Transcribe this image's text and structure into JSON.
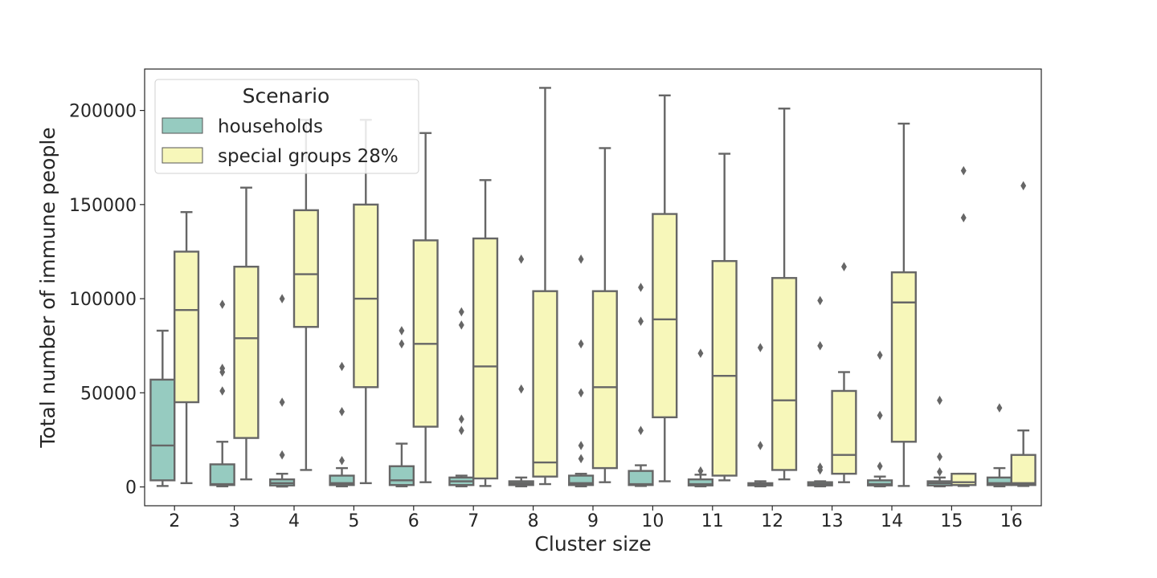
{
  "chart_data": {
    "type": "box",
    "xlabel": "Cluster size",
    "ylabel": "Total number of immune people",
    "ylim": [
      -10000,
      222000
    ],
    "yticks": [
      0,
      50000,
      100000,
      150000,
      200000
    ],
    "categories": [
      "2",
      "3",
      "4",
      "5",
      "6",
      "7",
      "8",
      "9",
      "10",
      "11",
      "12",
      "13",
      "14",
      "15",
      "16"
    ],
    "legend": {
      "title": "Scenario",
      "placement": "top-left"
    },
    "series": [
      {
        "name": "households",
        "color": "#96cbc0",
        "boxes": [
          {
            "whislo": 500,
            "q1": 3500,
            "med": 22000,
            "q3": 57000,
            "whishi": 83000,
            "fliers": []
          },
          {
            "whislo": 300,
            "q1": 1000,
            "med": 1500,
            "q3": 12000,
            "whishi": 24000,
            "fliers": [
              51000,
              61000,
              63000,
              97000
            ]
          },
          {
            "whislo": 200,
            "q1": 800,
            "med": 2000,
            "q3": 4000,
            "whishi": 7000,
            "fliers": [
              17000,
              45000,
              100000
            ]
          },
          {
            "whislo": 300,
            "q1": 1000,
            "med": 2000,
            "q3": 6000,
            "whishi": 10000,
            "fliers": [
              14000,
              40000,
              64000
            ]
          },
          {
            "whislo": 300,
            "q1": 1000,
            "med": 3500,
            "q3": 11000,
            "whishi": 23000,
            "fliers": [
              76000,
              83000
            ]
          },
          {
            "whislo": 300,
            "q1": 1000,
            "med": 3000,
            "q3": 5000,
            "whishi": 6000,
            "fliers": [
              30000,
              36000,
              86000,
              93000
            ]
          },
          {
            "whislo": 300,
            "q1": 1000,
            "med": 2000,
            "q3": 3000,
            "whishi": 5000,
            "fliers": [
              52000,
              121000
            ]
          },
          {
            "whislo": 300,
            "q1": 1000,
            "med": 2000,
            "q3": 6000,
            "whishi": 7000,
            "fliers": [
              15000,
              22000,
              50000,
              76000,
              121000
            ]
          },
          {
            "whislo": 500,
            "q1": 1000,
            "med": 1500,
            "q3": 8500,
            "whishi": 11500,
            "fliers": [
              30000,
              88000,
              106000
            ]
          },
          {
            "whislo": 300,
            "q1": 800,
            "med": 1500,
            "q3": 4000,
            "whishi": 6500,
            "fliers": [
              8500,
              71000
            ]
          },
          {
            "whislo": 300,
            "q1": 800,
            "med": 1500,
            "q3": 2000,
            "whishi": 3000,
            "fliers": [
              22000,
              74000
            ]
          },
          {
            "whislo": 300,
            "q1": 800,
            "med": 1500,
            "q3": 2500,
            "whishi": 3000,
            "fliers": [
              9000,
              10500,
              75000,
              99000
            ]
          },
          {
            "whislo": 300,
            "q1": 800,
            "med": 1500,
            "q3": 3500,
            "whishi": 5500,
            "fliers": [
              11000,
              38000,
              70000
            ]
          },
          {
            "whislo": 300,
            "q1": 800,
            "med": 2000,
            "q3": 3000,
            "whishi": 5000,
            "fliers": [
              8000,
              16000,
              46000
            ]
          },
          {
            "whislo": 300,
            "q1": 1000,
            "med": 2000,
            "q3": 5000,
            "whishi": 10000,
            "fliers": [
              42000
            ]
          }
        ]
      },
      {
        "name": "special groups 28%",
        "color": "#f7f7ba",
        "boxes": [
          {
            "whislo": 2000,
            "q1": 45000,
            "med": 94000,
            "q3": 125000,
            "whishi": 146000,
            "fliers": []
          },
          {
            "whislo": 4000,
            "q1": 26000,
            "med": 79000,
            "q3": 117000,
            "whishi": 159000,
            "fliers": []
          },
          {
            "whislo": 9000,
            "q1": 85000,
            "med": 113000,
            "q3": 147000,
            "whishi": 195000,
            "fliers": []
          },
          {
            "whislo": 2000,
            "q1": 53000,
            "med": 100000,
            "q3": 150000,
            "whishi": 195000,
            "fliers": []
          },
          {
            "whislo": 2500,
            "q1": 32000,
            "med": 76000,
            "q3": 131000,
            "whishi": 188000,
            "fliers": []
          },
          {
            "whislo": 500,
            "q1": 4500,
            "med": 64000,
            "q3": 132000,
            "whishi": 163000,
            "fliers": []
          },
          {
            "whislo": 1500,
            "q1": 5500,
            "med": 13000,
            "q3": 104000,
            "whishi": 212000,
            "fliers": []
          },
          {
            "whislo": 2500,
            "q1": 10000,
            "med": 53000,
            "q3": 104000,
            "whishi": 180000,
            "fliers": []
          },
          {
            "whislo": 3000,
            "q1": 37000,
            "med": 89000,
            "q3": 145000,
            "whishi": 208000,
            "fliers": []
          },
          {
            "whislo": 3500,
            "q1": 6000,
            "med": 59000,
            "q3": 120000,
            "whishi": 177000,
            "fliers": []
          },
          {
            "whislo": 4000,
            "q1": 9000,
            "med": 46000,
            "q3": 111000,
            "whishi": 201000,
            "fliers": []
          },
          {
            "whislo": 2500,
            "q1": 7000,
            "med": 17000,
            "q3": 51000,
            "whishi": 61000,
            "fliers": [
              117000
            ]
          },
          {
            "whislo": 500,
            "q1": 24000,
            "med": 98000,
            "q3": 114000,
            "whishi": 193000,
            "fliers": []
          },
          {
            "whislo": 500,
            "q1": 1000,
            "med": 2500,
            "q3": 7000,
            "whishi": 7000,
            "fliers": [
              143000,
              168000
            ]
          },
          {
            "whislo": 500,
            "q1": 1000,
            "med": 2000,
            "q3": 17000,
            "whishi": 30000,
            "fliers": [
              160000
            ]
          }
        ]
      }
    ]
  }
}
